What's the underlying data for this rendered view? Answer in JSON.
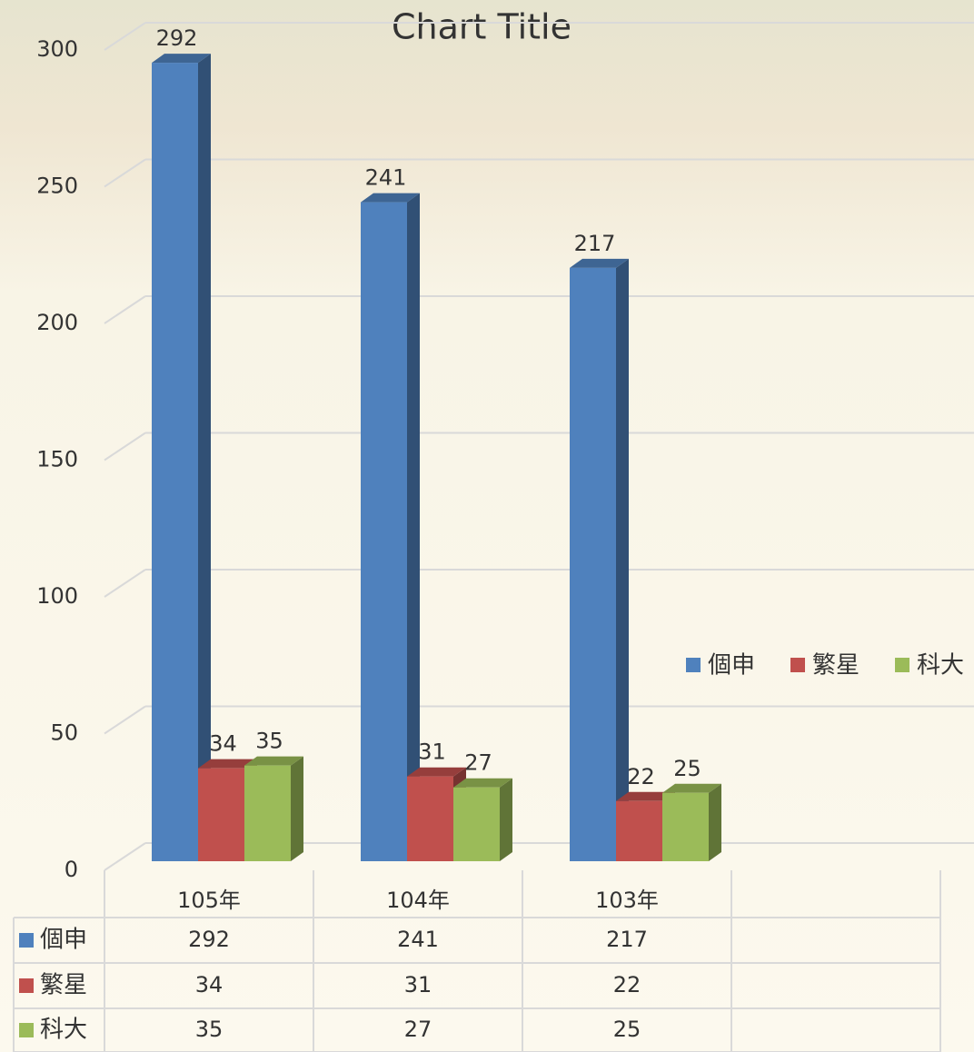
{
  "chart_data": {
    "type": "bar3d",
    "title": "Chart Title",
    "categories": [
      "105年",
      "104年",
      "103年",
      null
    ],
    "series": [
      {
        "name": "個申",
        "color": "#4f81bd",
        "values": [
          292,
          241,
          217,
          null
        ]
      },
      {
        "name": "繁星",
        "color": "#c0504d",
        "values": [
          34,
          31,
          22,
          null
        ]
      },
      {
        "name": "科大",
        "color": "#9bbb59",
        "values": [
          35,
          27,
          25,
          null
        ]
      }
    ],
    "ylim": [
      0,
      300
    ],
    "yticks": [
      0,
      50,
      100,
      150,
      200,
      250,
      300
    ],
    "grid": true,
    "legend": "right",
    "data_table": true
  }
}
